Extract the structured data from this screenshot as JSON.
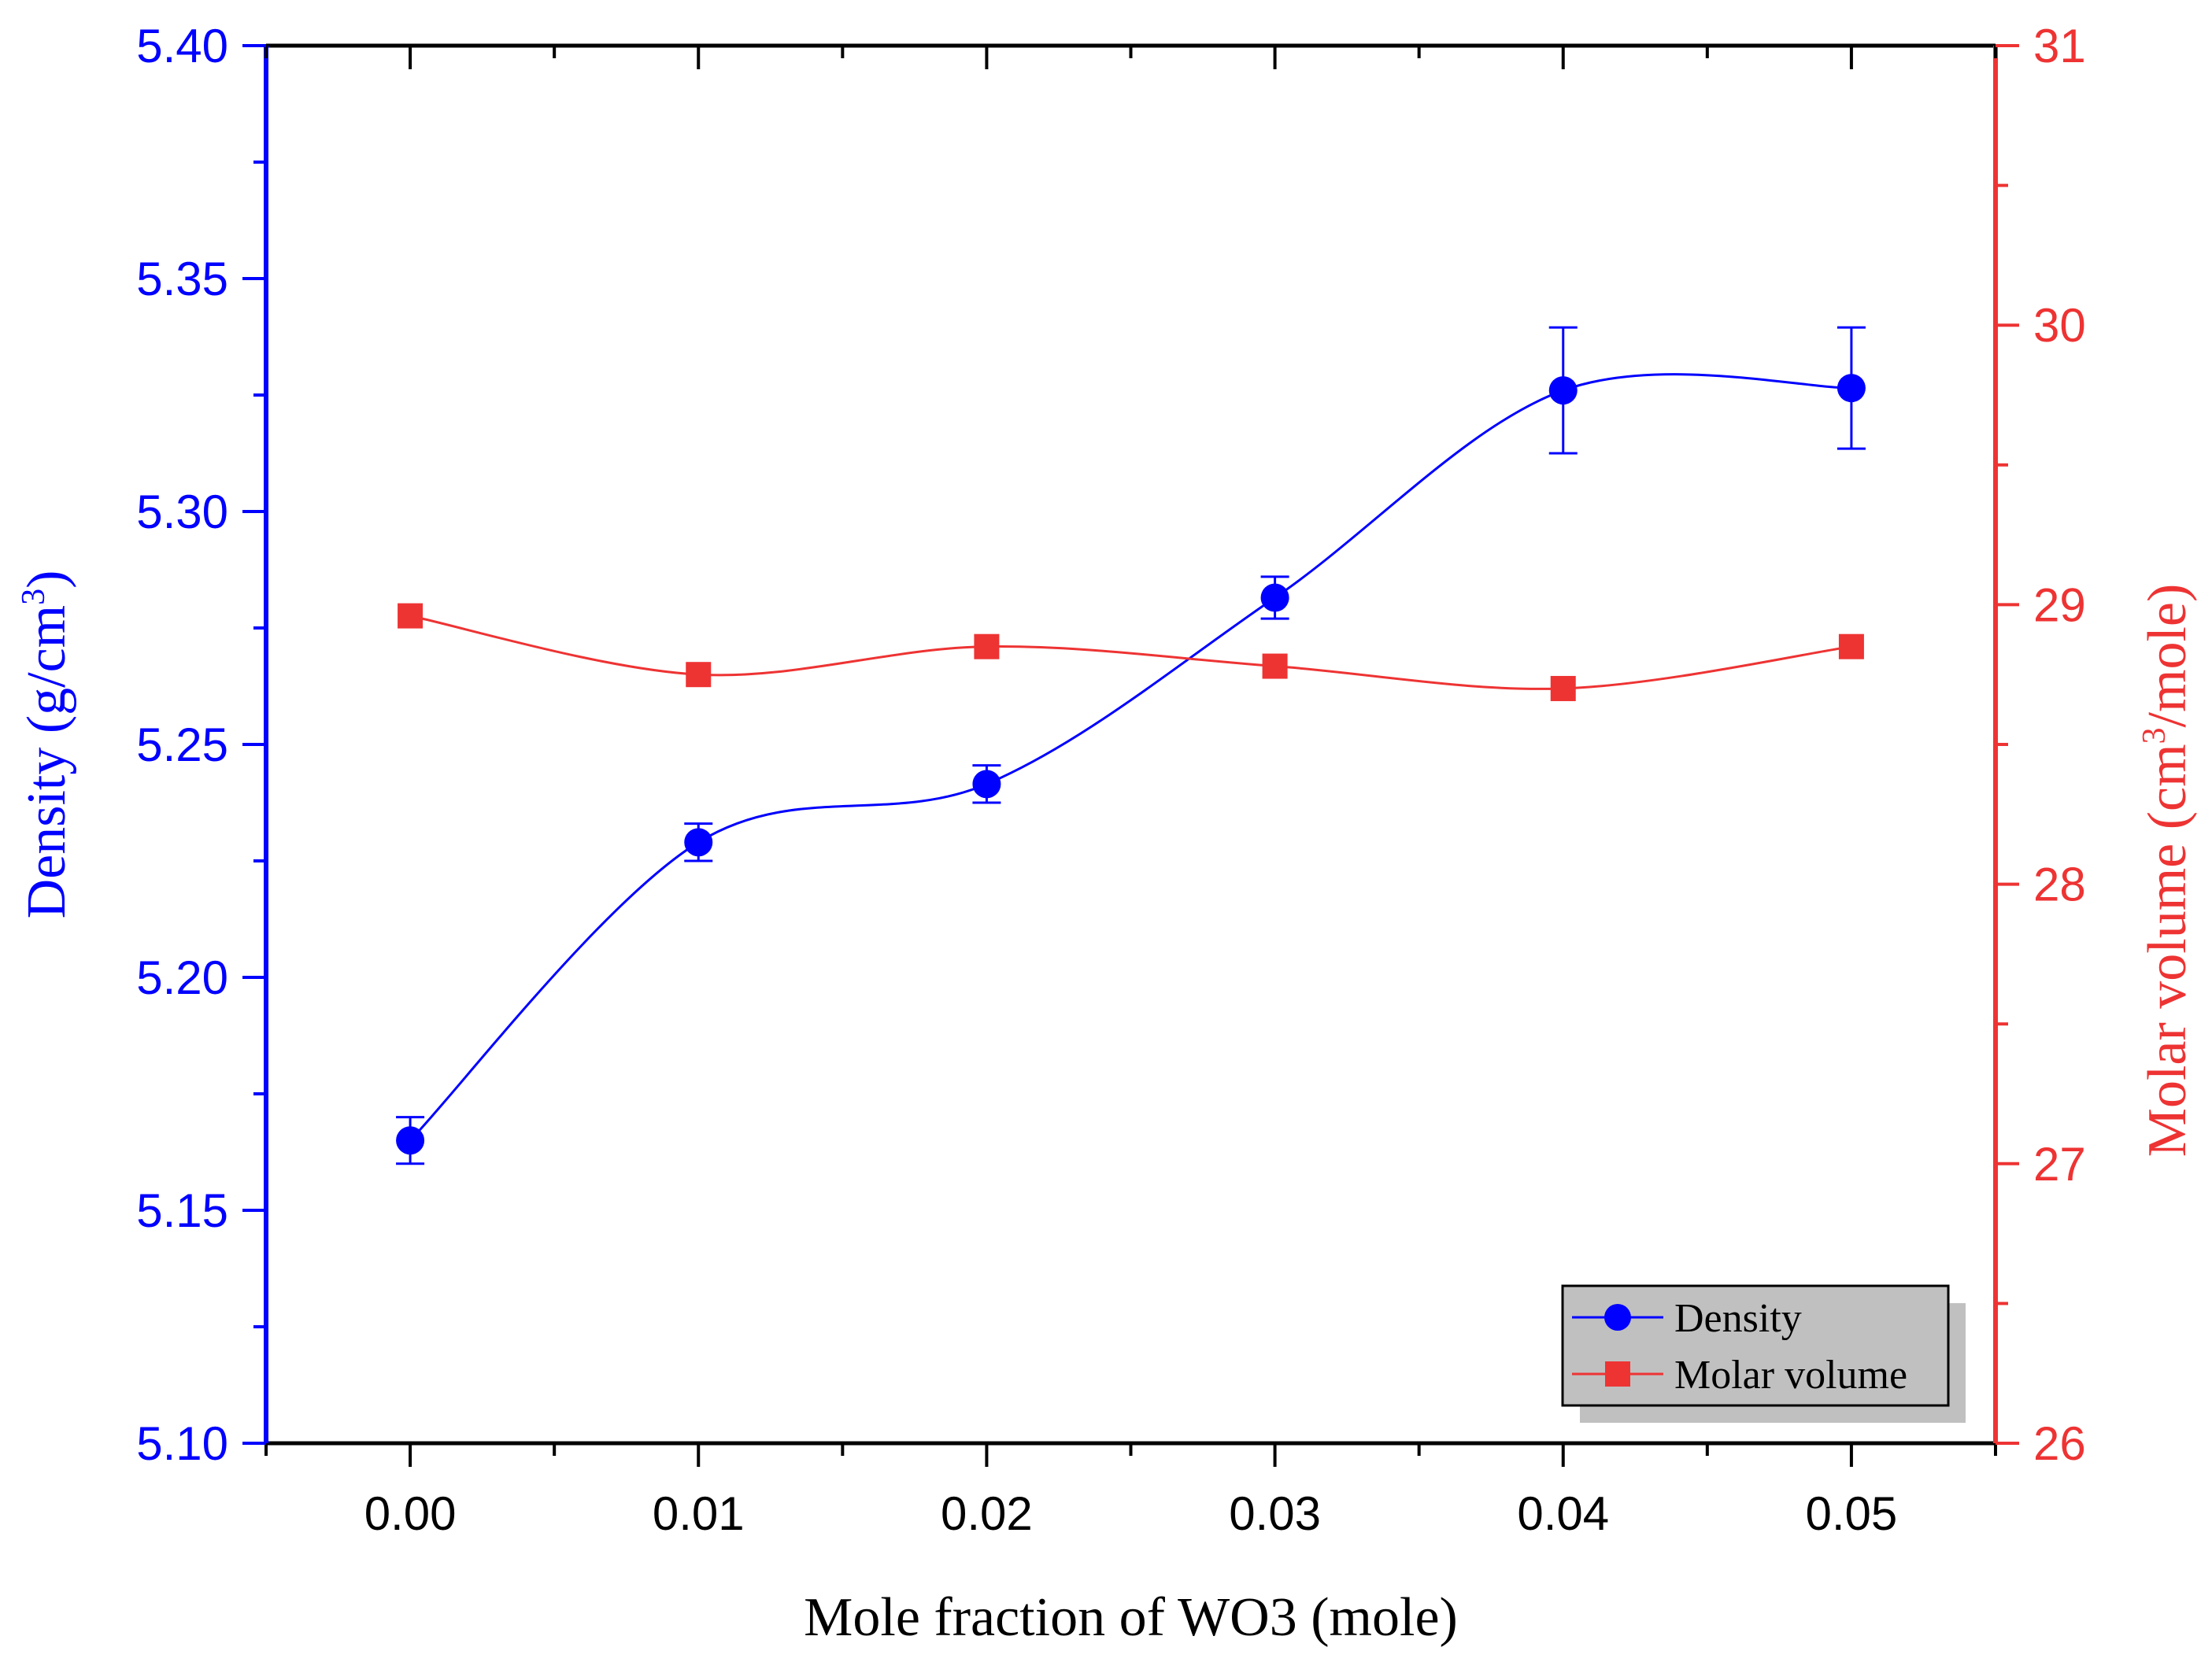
{
  "chart_data": {
    "type": "line",
    "title": "",
    "xlabel": "Mole fraction of WO3 (mole)",
    "x": [
      0.0,
      0.01,
      0.02,
      0.03,
      0.04,
      0.05
    ],
    "x_tick_labels": [
      "0.00",
      "0.01",
      "0.02",
      "0.03",
      "0.04",
      "0.05"
    ],
    "xlim": [
      -0.005,
      0.055
    ],
    "y_left": {
      "label_main": "Density (g/cm",
      "label_sup": "3",
      "label_end": ")",
      "range": [
        5.1,
        5.4
      ],
      "tick_labels": [
        "5.10",
        "5.15",
        "5.20",
        "5.25",
        "5.30",
        "5.35",
        "5.40"
      ],
      "tick_values": [
        5.1,
        5.15,
        5.2,
        5.25,
        5.3,
        5.35,
        5.4
      ],
      "color": "#0000ff"
    },
    "y_right": {
      "label_main": "Molar volume (cm",
      "label_sup": "3",
      "label_end": "/mole)",
      "range": [
        26,
        31
      ],
      "tick_labels": [
        "26",
        "27",
        "28",
        "29",
        "30",
        "31"
      ],
      "tick_values": [
        26,
        27,
        28,
        29,
        30,
        31
      ],
      "color": "#ee3333"
    },
    "series": [
      {
        "name": "Density",
        "axis": "left",
        "marker": "circle",
        "color": "#0000ff",
        "values": [
          5.165,
          5.229,
          5.2415,
          5.2815,
          5.326,
          5.3265
        ],
        "errors": [
          0.005,
          0.004,
          0.004,
          0.0045,
          0.0135,
          0.013
        ]
      },
      {
        "name": "Molar volume",
        "axis": "right",
        "marker": "square",
        "color": "#ee3333",
        "values": [
          28.96,
          28.75,
          28.85,
          28.78,
          28.7,
          28.85
        ]
      }
    ],
    "legend": {
      "position": "bottom-right",
      "entries": [
        "Density",
        "Molar volume"
      ]
    }
  }
}
